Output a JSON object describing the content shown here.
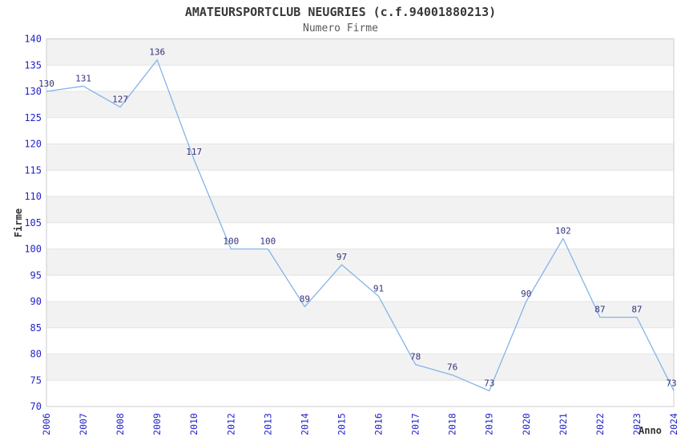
{
  "page": {
    "title": "AMATEURSPORTCLUB NEUGRIES (c.f.94001880213)",
    "subtitle": "Numero Firme"
  },
  "axes": {
    "y_title": "Firme",
    "x_title": "Anno"
  },
  "colors": {
    "line": "#85b4e8",
    "axis_tick_label": "#2323cc",
    "data_label": "#32327d",
    "band_fill": "#f2f2f2",
    "grid_line": "#e4e4e4",
    "plot_border": "#cccccc",
    "background": "#ffffff"
  },
  "chart_data": {
    "type": "line",
    "title": "AMATEURSPORTCLUB NEUGRIES (c.f.94001880213)",
    "subtitle": "Numero Firme",
    "xlabel": "Anno",
    "ylabel": "Firme",
    "categories": [
      "2006",
      "2007",
      "2008",
      "2009",
      "2010",
      "2012",
      "2013",
      "2014",
      "2015",
      "2016",
      "2017",
      "2018",
      "2019",
      "2020",
      "2021",
      "2022",
      "2023",
      "2024"
    ],
    "values": [
      130,
      131,
      127,
      136,
      117,
      100,
      100,
      89,
      97,
      91,
      78,
      76,
      73,
      90,
      102,
      87,
      87,
      73
    ],
    "ylim": [
      70,
      140
    ],
    "ytick_step": 5,
    "yticks": [
      70,
      75,
      80,
      85,
      90,
      95,
      100,
      105,
      110,
      115,
      120,
      125,
      130,
      135,
      140
    ],
    "grid": "alternating-horizontal-bands",
    "legend": "none",
    "data_labels": true
  }
}
